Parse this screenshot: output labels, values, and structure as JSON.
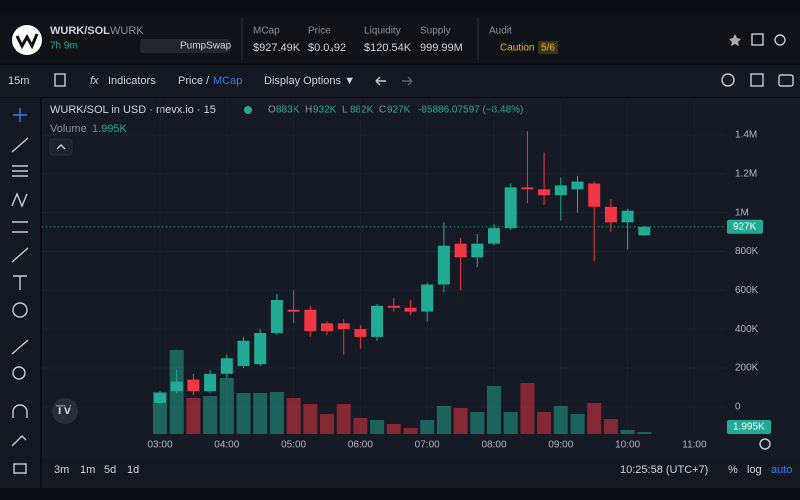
{
  "header": {
    "pair": "WURK/SOL",
    "symbol": "WURK",
    "age": "7h 9m",
    "dex": "PumpSwap",
    "stats": [
      {
        "label": "MCap",
        "value": "$927.49K"
      },
      {
        "label": "Price",
        "value": "$0.0₄92"
      },
      {
        "label": "Liquidity",
        "value": "$120.54K"
      },
      {
        "label": "Supply",
        "value": "999.99M"
      }
    ],
    "audit": {
      "label": "Audit",
      "status": "Caution",
      "score": "5/6"
    }
  },
  "toolbar": {
    "interval": "15m",
    "indicators": "Indicators",
    "price": "Price",
    "separator": "/",
    "mcap": "MCap",
    "display": "Display Options ▼"
  },
  "legend": {
    "title": "WURK/SOL in USD · mevx.io · 15",
    "ohlc": [
      [
        "O",
        "883K"
      ],
      [
        "H",
        "932K"
      ],
      [
        "L",
        "882K"
      ],
      [
        "C",
        "927K"
      ]
    ],
    "change": "-85886.07597 (−8.48%)",
    "volume_label": "Volume",
    "volume_value": "1.995K"
  },
  "chart_data": {
    "type": "candlestick",
    "categories": [
      "03:00",
      "03:15",
      "03:30",
      "03:45",
      "04:00",
      "04:15",
      "04:30",
      "04:45",
      "05:00",
      "05:15",
      "05:30",
      "05:45",
      "06:00",
      "06:15",
      "06:30",
      "06:45",
      "07:00",
      "07:15",
      "07:30",
      "07:45",
      "08:00",
      "08:15",
      "08:30",
      "08:45",
      "09:00",
      "09:15",
      "09:30",
      "09:45",
      "10:00",
      "10:15"
    ],
    "open": [
      20,
      80,
      140,
      80,
      170,
      210,
      220,
      380,
      500,
      500,
      430,
      430,
      400,
      360,
      520,
      510,
      490,
      630,
      840,
      770,
      840,
      920,
      1130,
      1120,
      1090,
      1120,
      1150,
      1030,
      950,
      883
    ],
    "high": [
      80,
      190,
      170,
      190,
      270,
      360,
      400,
      580,
      600,
      520,
      440,
      450,
      420,
      530,
      560,
      550,
      640,
      950,
      870,
      890,
      940,
      1150,
      1420,
      1310,
      1180,
      1190,
      1160,
      1070,
      1020,
      932
    ],
    "low": [
      10,
      70,
      60,
      70,
      150,
      200,
      210,
      370,
      430,
      360,
      370,
      270,
      300,
      340,
      490,
      470,
      440,
      590,
      600,
      720,
      830,
      910,
      1050,
      1040,
      960,
      1000,
      750,
      900,
      810,
      882
    ],
    "close": [
      70,
      130,
      80,
      170,
      250,
      340,
      380,
      550,
      490,
      390,
      390,
      400,
      360,
      520,
      510,
      490,
      630,
      830,
      770,
      840,
      920,
      1130,
      1120,
      1090,
      1140,
      1160,
      1030,
      950,
      1010,
      927
    ],
    "volume": [
      42,
      84,
      36,
      38,
      56,
      41,
      41,
      42,
      36,
      30,
      20,
      30,
      16,
      14,
      10,
      6,
      14,
      28,
      26,
      22,
      48,
      22,
      51,
      22,
      28,
      20,
      31,
      15,
      4,
      1.995
    ],
    "up_color": "#22ab94",
    "down_color": "#f23645",
    "ylim": [
      -140,
      1580
    ],
    "yticks": [
      0,
      {
        "value": 200,
        "label": "200K"
      },
      {
        "value": 400,
        "label": "400K"
      },
      {
        "value": 600,
        "label": "600K"
      },
      {
        "value": 800,
        "label": "800K"
      },
      {
        "value": 1000,
        "label": "1M"
      },
      {
        "value": 1200,
        "label": "1.2M"
      },
      {
        "value": 1400,
        "label": "1.4M"
      }
    ],
    "xticks": [
      "03:00",
      "04:00",
      "05:00",
      "06:00",
      "07:00",
      "08:00",
      "09:00",
      "10:00",
      "11:00"
    ],
    "last_price_label": "927K",
    "last_volume_label": "1.995K",
    "grid": true
  },
  "footer": {
    "ranges": [
      "3m",
      "1m",
      "5d",
      "1d"
    ],
    "clock": "10:25:58 (UTC+7)",
    "options": [
      "%",
      "log",
      "auto"
    ]
  }
}
